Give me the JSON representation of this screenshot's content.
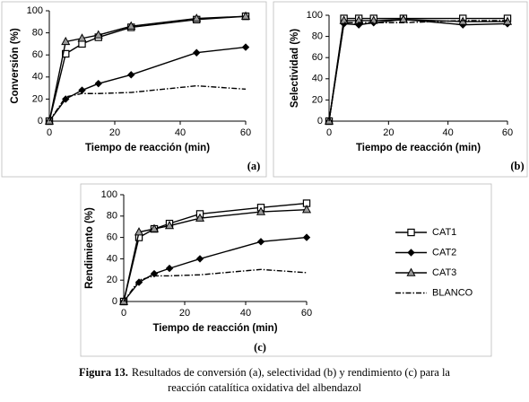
{
  "chart_data": [
    {
      "type": "line",
      "label": "(a)",
      "xlabel": "Tiempo de reacción (min)",
      "ylabel": "Conversión (%)",
      "x": [
        0,
        5,
        10,
        15,
        25,
        45,
        60
      ],
      "xlim": [
        0,
        60
      ],
      "xticks": [
        0,
        20,
        40,
        60
      ],
      "ylim": [
        0,
        100
      ],
      "yticks": [
        0,
        20,
        40,
        60,
        80,
        100
      ],
      "series": [
        {
          "name": "CAT1",
          "color": "#000000",
          "marker": "square",
          "dash": "solid",
          "values": [
            0,
            61,
            70,
            76,
            85,
            92,
            95
          ]
        },
        {
          "name": "CAT2",
          "color": "#000000",
          "marker": "diamond",
          "dash": "solid",
          "values": [
            0,
            20,
            28,
            34,
            42,
            62,
            67
          ]
        },
        {
          "name": "CAT3",
          "color": "#000000",
          "marker": "triangle",
          "dash": "solid",
          "values": [
            0,
            72,
            75,
            78,
            86,
            93,
            95
          ]
        },
        {
          "name": "BLANCO",
          "color": "#000000",
          "marker": "none",
          "dash": "dashdot",
          "values": [
            0,
            22,
            25,
            25,
            26,
            32,
            29
          ]
        }
      ]
    },
    {
      "type": "line",
      "label": "(b)",
      "xlabel": "Tiempo de reacción (min)",
      "ylabel": "Selectividad (%)",
      "x": [
        0,
        5,
        10,
        15,
        25,
        45,
        60
      ],
      "xlim": [
        0,
        60
      ],
      "xticks": [
        0,
        20,
        40,
        60
      ],
      "ylim": [
        0,
        100
      ],
      "yticks": [
        0,
        20,
        40,
        60,
        80,
        100
      ],
      "series": [
        {
          "name": "CAT1",
          "color": "#000000",
          "marker": "square",
          "dash": "solid",
          "values": [
            0,
            97,
            97,
            97,
            97,
            97,
            97
          ]
        },
        {
          "name": "CAT2",
          "color": "#000000",
          "marker": "diamond",
          "dash": "solid",
          "values": [
            0,
            92,
            91,
            93,
            96,
            91,
            92
          ]
        },
        {
          "name": "CAT3",
          "color": "#000000",
          "marker": "triangle",
          "dash": "solid",
          "values": [
            0,
            95,
            95,
            95,
            96,
            94,
            94
          ]
        },
        {
          "name": "BLANCO",
          "color": "#000000",
          "marker": "none",
          "dash": "dashdot",
          "values": [
            0,
            93,
            93,
            93,
            93,
            95,
            95
          ]
        }
      ]
    },
    {
      "type": "line",
      "label": "(c)",
      "xlabel": "Tiempo de reacción (min)",
      "ylabel": "Rendimiento (%)",
      "x": [
        0,
        5,
        10,
        15,
        25,
        45,
        60
      ],
      "xlim": [
        0,
        60
      ],
      "xticks": [
        0,
        20,
        40,
        60
      ],
      "ylim": [
        0,
        100
      ],
      "yticks": [
        0,
        20,
        40,
        60,
        80,
        100
      ],
      "series": [
        {
          "name": "CAT1",
          "color": "#000000",
          "marker": "square",
          "dash": "solid",
          "values": [
            0,
            60,
            68,
            73,
            82,
            88,
            92
          ]
        },
        {
          "name": "CAT2",
          "color": "#000000",
          "marker": "diamond",
          "dash": "solid",
          "values": [
            0,
            18,
            26,
            31,
            40,
            56,
            60
          ]
        },
        {
          "name": "CAT3",
          "color": "#000000",
          "marker": "triangle",
          "dash": "solid",
          "values": [
            0,
            65,
            68,
            71,
            78,
            84,
            86
          ]
        },
        {
          "name": "BLANCO",
          "color": "#000000",
          "marker": "none",
          "dash": "dashdot",
          "values": [
            0,
            20,
            24,
            24,
            25,
            30,
            27
          ]
        }
      ]
    }
  ],
  "caption": {
    "label": "Figura 13.",
    "lines": [
      "Resultados de conversión (a), selectividad (b) y rendimiento (c) para  la",
      "reacción catalítica  oxidativa del albendazol"
    ]
  }
}
